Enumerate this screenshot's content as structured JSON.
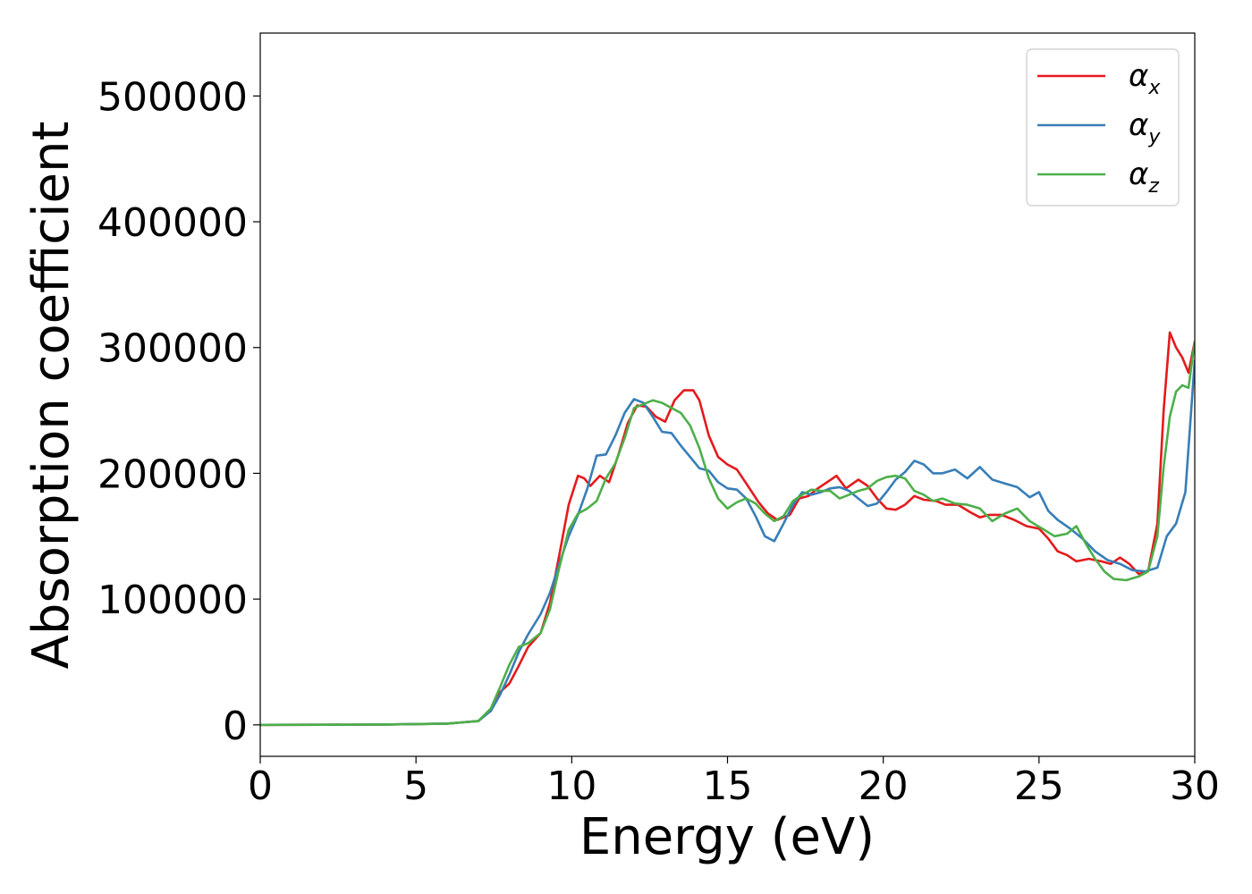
{
  "chart_data": {
    "type": "line",
    "xlabel": "Energy (eV)",
    "ylabel": "Absorption coefficient",
    "xlim": [
      0,
      30
    ],
    "ylim": [
      -25000,
      550000
    ],
    "xticks": [
      0,
      5,
      10,
      15,
      20,
      25,
      30
    ],
    "xtick_labels": [
      "0",
      "5",
      "10",
      "15",
      "20",
      "25",
      "30"
    ],
    "yticks": [
      0,
      100000,
      200000,
      300000,
      400000,
      500000
    ],
    "ytick_labels": [
      "0",
      "100000",
      "200000",
      "300000",
      "400000",
      "500000"
    ],
    "grid": false,
    "legend_position": "top-right",
    "series": [
      {
        "name": "α_x",
        "legend_base": "α",
        "legend_sub": "x",
        "color": "#e41a1c",
        "x": [
          0,
          2,
          4,
          6,
          7,
          7.4,
          7.7,
          8,
          8.3,
          8.6,
          9,
          9.3,
          9.6,
          9.9,
          10.2,
          10.4,
          10.6,
          10.9,
          11.2,
          11.5,
          11.8,
          12.1,
          12.4,
          12.7,
          13,
          13.3,
          13.6,
          13.9,
          14.1,
          14.4,
          14.7,
          15,
          15.3,
          15.6,
          16,
          16.3,
          16.6,
          17,
          17.3,
          17.6,
          17.9,
          18.2,
          18.5,
          18.8,
          19.2,
          19.5,
          19.8,
          20.1,
          20.4,
          20.7,
          21,
          21.3,
          21.7,
          22,
          22.4,
          22.8,
          23.1,
          23.4,
          23.8,
          24.2,
          24.6,
          25,
          25.3,
          25.6,
          25.9,
          26.2,
          26.6,
          27,
          27.3,
          27.6,
          27.9,
          28.2,
          28.5,
          28.8,
          29.0,
          29.2,
          29.4,
          29.6,
          29.8,
          30
        ],
        "values": [
          0,
          100,
          300,
          1000,
          3000,
          12000,
          26000,
          33000,
          47000,
          62000,
          73000,
          97000,
          135000,
          175000,
          198000,
          196000,
          190000,
          198000,
          193000,
          215000,
          240000,
          254000,
          253000,
          245000,
          241000,
          258000,
          266000,
          266000,
          258000,
          230000,
          213000,
          207000,
          203000,
          192000,
          177000,
          168000,
          163000,
          167000,
          180000,
          182000,
          188000,
          193000,
          198000,
          188000,
          195000,
          190000,
          180000,
          172000,
          171000,
          175000,
          182000,
          179000,
          178000,
          175000,
          175000,
          169000,
          165000,
          167000,
          167000,
          163000,
          158000,
          156000,
          148000,
          138000,
          135000,
          130000,
          132000,
          130000,
          128000,
          133000,
          128000,
          120000,
          122000,
          160000,
          250000,
          312000,
          300000,
          292000,
          280000,
          305000
        ]
      },
      {
        "name": "α_y",
        "legend_base": "α",
        "legend_sub": "y",
        "color": "#377eb8",
        "x": [
          0,
          2,
          4,
          6,
          7,
          7.4,
          7.7,
          8,
          8.3,
          8.6,
          9,
          9.3,
          9.6,
          9.9,
          10.2,
          10.5,
          10.8,
          11.1,
          11.4,
          11.7,
          12,
          12.3,
          12.6,
          12.9,
          13.2,
          13.5,
          13.8,
          14.1,
          14.4,
          14.7,
          15,
          15.3,
          15.6,
          15.9,
          16.2,
          16.5,
          16.8,
          17.1,
          17.4,
          17.7,
          18,
          18.3,
          18.6,
          18.9,
          19.2,
          19.5,
          19.8,
          20.1,
          20.4,
          20.7,
          21,
          21.3,
          21.6,
          21.9,
          22.3,
          22.7,
          23.1,
          23.5,
          23.9,
          24.3,
          24.7,
          25,
          25.3,
          25.6,
          26,
          26.4,
          26.8,
          27.2,
          27.6,
          28,
          28.4,
          28.8,
          29.1,
          29.4,
          29.7,
          30
        ],
        "values": [
          0,
          100,
          300,
          1000,
          3000,
          11000,
          24000,
          40000,
          58000,
          72000,
          88000,
          105000,
          128000,
          150000,
          167000,
          188000,
          214000,
          215000,
          230000,
          248000,
          259000,
          256000,
          245000,
          233000,
          232000,
          222000,
          213000,
          204000,
          202000,
          193000,
          188000,
          187000,
          180000,
          166000,
          150000,
          146000,
          160000,
          175000,
          185000,
          183000,
          185000,
          188000,
          189000,
          186000,
          180000,
          174000,
          176000,
          185000,
          195000,
          201000,
          210000,
          207000,
          200000,
          200000,
          203000,
          196000,
          205000,
          195000,
          192000,
          189000,
          181000,
          185000,
          170000,
          163000,
          156000,
          148000,
          138000,
          131000,
          128000,
          123000,
          122000,
          125000,
          150000,
          160000,
          185000,
          290000
        ]
      },
      {
        "name": "α_z",
        "legend_base": "α",
        "legend_sub": "z",
        "color": "#4daf4a",
        "x": [
          0,
          2,
          4,
          6,
          7,
          7.4,
          7.7,
          8,
          8.3,
          8.6,
          9,
          9.3,
          9.6,
          9.9,
          10.2,
          10.5,
          10.8,
          11.1,
          11.4,
          11.7,
          12,
          12.3,
          12.6,
          12.9,
          13.2,
          13.5,
          13.8,
          14.1,
          14.4,
          14.7,
          15,
          15.3,
          15.6,
          15.9,
          16.2,
          16.5,
          16.8,
          17.1,
          17.4,
          17.7,
          18,
          18.3,
          18.6,
          18.9,
          19.2,
          19.5,
          19.8,
          20.1,
          20.4,
          20.7,
          21,
          21.3,
          21.6,
          21.9,
          22.3,
          22.7,
          23.1,
          23.5,
          23.9,
          24.3,
          24.7,
          25.1,
          25.5,
          25.9,
          26.2,
          26.5,
          26.8,
          27.1,
          27.4,
          27.8,
          28.2,
          28.5,
          28.8,
          29.0,
          29.2,
          29.4,
          29.6,
          29.8,
          30
        ],
        "values": [
          0,
          100,
          300,
          1000,
          3000,
          13000,
          30000,
          48000,
          62000,
          65000,
          73000,
          92000,
          125000,
          155000,
          168000,
          172000,
          178000,
          196000,
          208000,
          228000,
          252000,
          255000,
          258000,
          256000,
          252000,
          248000,
          238000,
          220000,
          196000,
          180000,
          172000,
          177000,
          180000,
          176000,
          168000,
          162000,
          166000,
          178000,
          183000,
          187000,
          186000,
          186000,
          180000,
          183000,
          186000,
          188000,
          194000,
          197000,
          198000,
          196000,
          186000,
          183000,
          178000,
          180000,
          176000,
          175000,
          172000,
          162000,
          168000,
          172000,
          162000,
          156000,
          150000,
          152000,
          158000,
          144000,
          132000,
          122000,
          116000,
          115000,
          118000,
          122000,
          150000,
          205000,
          245000,
          265000,
          270000,
          268000,
          305000
        ]
      }
    ]
  }
}
